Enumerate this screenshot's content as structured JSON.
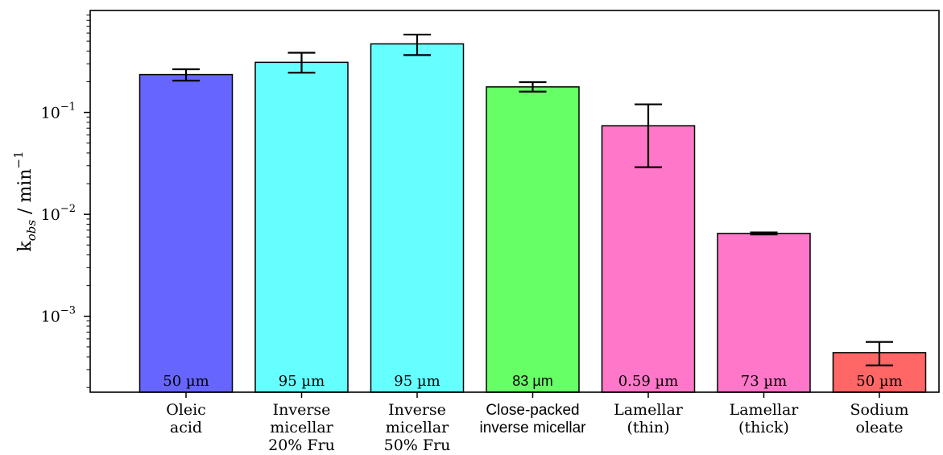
{
  "chart_data": {
    "type": "bar",
    "ylabel": "k_obs / min^-1",
    "yscale": "log",
    "ylim": [
      0.00018,
      1.0
    ],
    "ytick_labels": [
      {
        "value": 0.1,
        "base": "10",
        "exp": "−1"
      },
      {
        "value": 0.01,
        "base": "10",
        "exp": "−2"
      },
      {
        "value": 0.001,
        "base": "10",
        "exp": "−3"
      }
    ],
    "grid": false,
    "categories": [
      [
        "Oleic",
        "acid"
      ],
      [
        "Inverse",
        "micellar",
        "20% Fru"
      ],
      [
        "Inverse",
        "micellar",
        "50% Fru"
      ],
      [
        "Close-packed",
        "inverse micellar"
      ],
      [
        "Lamellar",
        "(thin)"
      ],
      [
        "Lamellar",
        "(thick)"
      ],
      [
        "Sodium",
        "oleate"
      ]
    ],
    "values": [
      0.235,
      0.31,
      0.47,
      0.178,
      0.074,
      0.0065,
      0.00044
    ],
    "error_low": [
      0.205,
      0.245,
      0.365,
      0.16,
      0.029,
      0.00635,
      0.00033
    ],
    "error_high": [
      0.265,
      0.385,
      0.58,
      0.198,
      0.12,
      0.00665,
      0.00056
    ],
    "bar_labels": [
      "50 µm",
      "95 µm",
      "95 µm",
      "83 µm",
      "0.59 µm",
      "73 µm",
      "50 µm"
    ],
    "colors": [
      "#6666ff",
      "#66ffff",
      "#66ffff",
      "#66ff66",
      "#ff77c8",
      "#ff77c8",
      "#ff6666"
    ]
  }
}
